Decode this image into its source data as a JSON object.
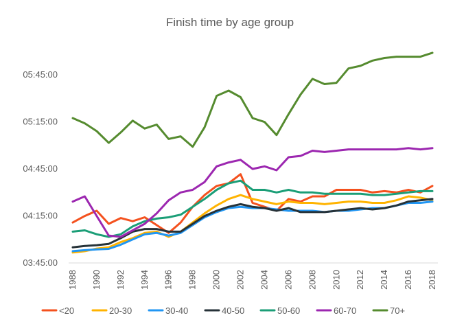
{
  "chart_data": {
    "type": "line",
    "title": "Finish time by age group",
    "xlabel": "",
    "ylabel": "",
    "x": [
      1988,
      1989,
      1990,
      1991,
      1992,
      1993,
      1994,
      1995,
      1996,
      1997,
      1998,
      1999,
      2000,
      2001,
      2002,
      2003,
      2004,
      2005,
      2006,
      2007,
      2008,
      2009,
      2010,
      2011,
      2012,
      2013,
      2014,
      2015,
      2016,
      2017,
      2018
    ],
    "x_tick_labels": [
      "1988",
      "1990",
      "1992",
      "1994",
      "1996",
      "1998",
      "2000",
      "2002",
      "2004",
      "2006",
      "2008",
      "2010",
      "2012",
      "2014",
      "2016",
      "2018"
    ],
    "ylim_seconds": [
      13500,
      21600
    ],
    "y_ticks": [
      {
        "seconds": 13500,
        "label": "03:45:00"
      },
      {
        "seconds": 15300,
        "label": "04:15:00"
      },
      {
        "seconds": 17100,
        "label": "04:45:00"
      },
      {
        "seconds": 18900,
        "label": "05:15:00"
      },
      {
        "seconds": 20700,
        "label": "05:45:00"
      }
    ],
    "grid": false,
    "legend_position": "bottom",
    "series": [
      {
        "name": "<20",
        "color": "#F4511E",
        "values": [
          15050,
          15300,
          15500,
          15000,
          15220,
          15100,
          15250,
          14950,
          14650,
          15050,
          15650,
          16100,
          16450,
          16550,
          16900,
          15800,
          15650,
          15500,
          15950,
          15850,
          16050,
          16050,
          16300,
          16300,
          16300,
          16200,
          16250,
          16200,
          16300,
          16200,
          16450
        ]
      },
      {
        "name": "20-30",
        "color": "#FFB300",
        "values": [
          13900,
          13950,
          14050,
          14100,
          14300,
          14450,
          14650,
          14700,
          14500,
          14700,
          15050,
          15400,
          15700,
          15950,
          16100,
          15950,
          15850,
          15750,
          15850,
          15800,
          15800,
          15750,
          15800,
          15850,
          15850,
          15800,
          15800,
          15900,
          16050,
          16000,
          15900
        ]
      },
      {
        "name": "30-40",
        "color": "#2196F3",
        "values": [
          13950,
          13990,
          14020,
          14040,
          14200,
          14400,
          14600,
          14650,
          14550,
          14650,
          14950,
          15250,
          15450,
          15600,
          15650,
          15600,
          15600,
          15550,
          15500,
          15500,
          15500,
          15450,
          15500,
          15500,
          15550,
          15600,
          15600,
          15700,
          15800,
          15800,
          15850
        ]
      },
      {
        "name": "40-50",
        "color": "#263238",
        "values": [
          14100,
          14150,
          14180,
          14230,
          14450,
          14700,
          14800,
          14800,
          14700,
          14700,
          15000,
          15300,
          15500,
          15650,
          15750,
          15650,
          15600,
          15500,
          15600,
          15450,
          15450,
          15450,
          15500,
          15550,
          15600,
          15550,
          15600,
          15700,
          15850,
          15900,
          15950
        ]
      },
      {
        "name": "50-60",
        "color": "#1B9E77",
        "values": [
          14700,
          14750,
          14600,
          14500,
          14600,
          14900,
          15100,
          15200,
          15250,
          15350,
          15650,
          15950,
          16300,
          16550,
          16650,
          16300,
          16300,
          16200,
          16300,
          16200,
          16200,
          16150,
          16150,
          16150,
          16150,
          16100,
          16100,
          16150,
          16200,
          16250,
          16250
        ]
      },
      {
        "name": "60-70",
        "color": "#9C27B0",
        "values": [
          15850,
          16050,
          15300,
          14550,
          14500,
          14750,
          15000,
          15400,
          15900,
          16200,
          16300,
          16600,
          17200,
          17350,
          17450,
          17100,
          17200,
          17050,
          17550,
          17600,
          17800,
          17750,
          17800,
          17850,
          17850,
          17850,
          17850,
          17850,
          17900,
          17850,
          17900
        ]
      },
      {
        "name": "70+",
        "color": "#558B2F",
        "values": [
          19050,
          18850,
          18550,
          18100,
          18500,
          18950,
          18650,
          18800,
          18250,
          18350,
          17950,
          18700,
          19900,
          20100,
          19850,
          19050,
          18900,
          18400,
          19200,
          19950,
          20550,
          20350,
          20400,
          20950,
          21050,
          21250,
          21350,
          21400,
          21400,
          21400,
          21550
        ]
      }
    ]
  }
}
